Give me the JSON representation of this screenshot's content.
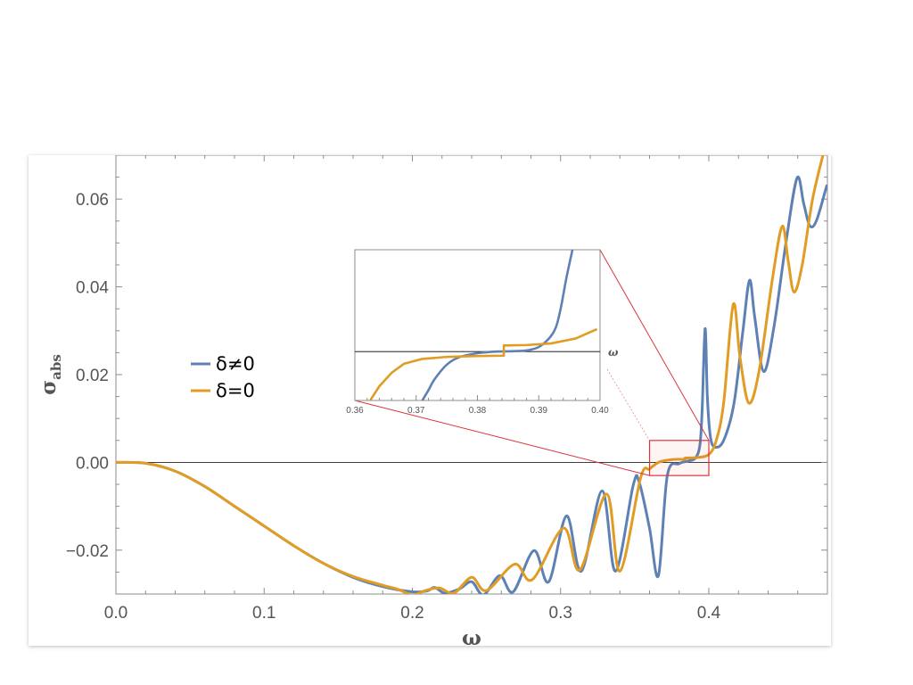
{
  "chart_data": {
    "type": "line",
    "xlabel": "ω",
    "ylabel": "σ",
    "ylabel_sub": "abs",
    "xlim": [
      0,
      0.48
    ],
    "ylim": [
      -0.03,
      0.07
    ],
    "x_ticks": [
      "0.0",
      "0.1",
      "0.2",
      "0.3",
      "0.4"
    ],
    "x_tick_values": [
      0.0,
      0.1,
      0.2,
      0.3,
      0.4
    ],
    "y_ticks": [
      "−0.02",
      "0.00",
      "0.02",
      "0.04",
      "0.06"
    ],
    "y_tick_values": [
      -0.02,
      0.0,
      0.02,
      0.04,
      0.06
    ],
    "legend_position": "left",
    "series": [
      {
        "name": "δ≠0",
        "color": "#5e81b5",
        "points": [
          [
            0.0,
            0.0
          ],
          [
            0.02,
            -0.0002
          ],
          [
            0.04,
            -0.002
          ],
          [
            0.06,
            -0.0055
          ],
          [
            0.08,
            -0.01
          ],
          [
            0.1,
            -0.0145
          ],
          [
            0.12,
            -0.019
          ],
          [
            0.14,
            -0.023
          ],
          [
            0.16,
            -0.0262
          ],
          [
            0.18,
            -0.0283
          ],
          [
            0.2,
            -0.0295
          ],
          [
            0.21,
            -0.0293
          ],
          [
            0.215,
            -0.0285
          ],
          [
            0.222,
            -0.0298
          ],
          [
            0.232,
            -0.0288
          ],
          [
            0.24,
            -0.0272
          ],
          [
            0.248,
            -0.0302
          ],
          [
            0.259,
            -0.0258
          ],
          [
            0.268,
            -0.0295
          ],
          [
            0.282,
            -0.0201
          ],
          [
            0.292,
            -0.0272
          ],
          [
            0.304,
            -0.0122
          ],
          [
            0.314,
            -0.0248
          ],
          [
            0.328,
            -0.0065
          ],
          [
            0.337,
            -0.0248
          ],
          [
            0.349,
            -0.0052
          ],
          [
            0.353,
            -0.0045
          ],
          [
            0.36,
            -0.015
          ],
          [
            0.366,
            -0.0258
          ],
          [
            0.372,
            -0.003
          ],
          [
            0.38,
            -0.0003
          ],
          [
            0.386,
            0.0003
          ],
          [
            0.391,
            0.001
          ],
          [
            0.394,
            0.004
          ],
          [
            0.3955,
            0.012
          ],
          [
            0.3975,
            0.0305
          ],
          [
            0.399,
            0.015
          ],
          [
            0.401,
            0.006
          ],
          [
            0.404,
            0.0035
          ],
          [
            0.41,
            0.005
          ],
          [
            0.417,
            0.0135
          ],
          [
            0.423,
            0.03
          ],
          [
            0.4275,
            0.0415
          ],
          [
            0.431,
            0.033
          ],
          [
            0.437,
            0.0207
          ],
          [
            0.444,
            0.031
          ],
          [
            0.452,
            0.05
          ],
          [
            0.4595,
            0.0648
          ],
          [
            0.464,
            0.059
          ],
          [
            0.468,
            0.054
          ],
          [
            0.4725,
            0.055
          ],
          [
            0.4795,
            0.063
          ]
        ]
      },
      {
        "name": "δ=0",
        "color": "#e19c24",
        "points": [
          [
            0.0,
            0.0
          ],
          [
            0.02,
            -0.0002
          ],
          [
            0.04,
            -0.002
          ],
          [
            0.06,
            -0.0055
          ],
          [
            0.08,
            -0.01
          ],
          [
            0.1,
            -0.0145
          ],
          [
            0.12,
            -0.019
          ],
          [
            0.14,
            -0.023
          ],
          [
            0.16,
            -0.026
          ],
          [
            0.18,
            -0.028
          ],
          [
            0.19,
            -0.0289
          ],
          [
            0.2,
            -0.0302
          ],
          [
            0.208,
            -0.0293
          ],
          [
            0.218,
            -0.0286
          ],
          [
            0.228,
            -0.0298
          ],
          [
            0.24,
            -0.0262
          ],
          [
            0.25,
            -0.0292
          ],
          [
            0.269,
            -0.0232
          ],
          [
            0.281,
            -0.0267
          ],
          [
            0.302,
            -0.015
          ],
          [
            0.313,
            -0.0245
          ],
          [
            0.331,
            -0.0072
          ],
          [
            0.34,
            -0.0248
          ],
          [
            0.354,
            -0.0035
          ],
          [
            0.36,
            -0.0015
          ],
          [
            0.366,
            0.0
          ],
          [
            0.372,
            0.0005
          ],
          [
            0.378,
            0.0007
          ],
          [
            0.384,
            0.0007
          ],
          [
            0.3842,
            0.001
          ],
          [
            0.392,
            0.0011
          ],
          [
            0.4,
            0.0018
          ],
          [
            0.405,
            0.005
          ],
          [
            0.41,
            0.0135
          ],
          [
            0.4165,
            0.036
          ],
          [
            0.421,
            0.024
          ],
          [
            0.427,
            0.0135
          ],
          [
            0.434,
            0.021
          ],
          [
            0.443,
            0.042
          ],
          [
            0.4495,
            0.0538
          ],
          [
            0.4535,
            0.046
          ],
          [
            0.4575,
            0.0388
          ],
          [
            0.463,
            0.045
          ],
          [
            0.47,
            0.06
          ],
          [
            0.4785,
            0.072
          ]
        ]
      }
    ],
    "inset": {
      "type": "line",
      "xlabel": "ω",
      "xlim": [
        0.36,
        0.4
      ],
      "ylim": [
        -0.0012,
        0.0025
      ],
      "x_ticks": [
        "0.36",
        "0.37",
        "0.38",
        "0.39",
        "0.40"
      ],
      "x_tick_values": [
        0.36,
        0.37,
        0.38,
        0.39,
        0.4
      ],
      "zoom_region": {
        "x": [
          0.36,
          0.4
        ],
        "y": [
          -0.003,
          0.005
        ]
      },
      "series": [
        {
          "name": "δ≠0",
          "color": "#5e81b5",
          "points": [
            [
              0.371,
              -0.0012
            ],
            [
              0.372,
              -0.00095
            ],
            [
              0.373,
              -0.00068
            ],
            [
              0.375,
              -0.00032
            ],
            [
              0.377,
              -0.00014
            ],
            [
              0.38,
              -4e-05
            ],
            [
              0.383,
              0.0
            ],
            [
              0.386,
              1e-05
            ],
            [
              0.3885,
              4e-05
            ],
            [
              0.3905,
              0.00016
            ],
            [
              0.3925,
              0.0005
            ],
            [
              0.3935,
              0.001
            ],
            [
              0.3945,
              0.0018
            ],
            [
              0.3955,
              0.0025
            ]
          ]
        },
        {
          "name": "δ=0",
          "color": "#e19c24",
          "points": [
            [
              0.3625,
              -0.0012
            ],
            [
              0.364,
              -0.00085
            ],
            [
              0.366,
              -0.00052
            ],
            [
              0.368,
              -0.0003
            ],
            [
              0.371,
              -0.00018
            ],
            [
              0.375,
              -0.00013
            ],
            [
              0.38,
              -0.00011
            ],
            [
              0.3843,
              -0.0001
            ],
            [
              0.3843,
              0.00015
            ],
            [
              0.388,
              0.00016
            ],
            [
              0.392,
              0.0002
            ],
            [
              0.396,
              0.00032
            ],
            [
              0.3995,
              0.00055
            ]
          ]
        }
      ]
    }
  }
}
